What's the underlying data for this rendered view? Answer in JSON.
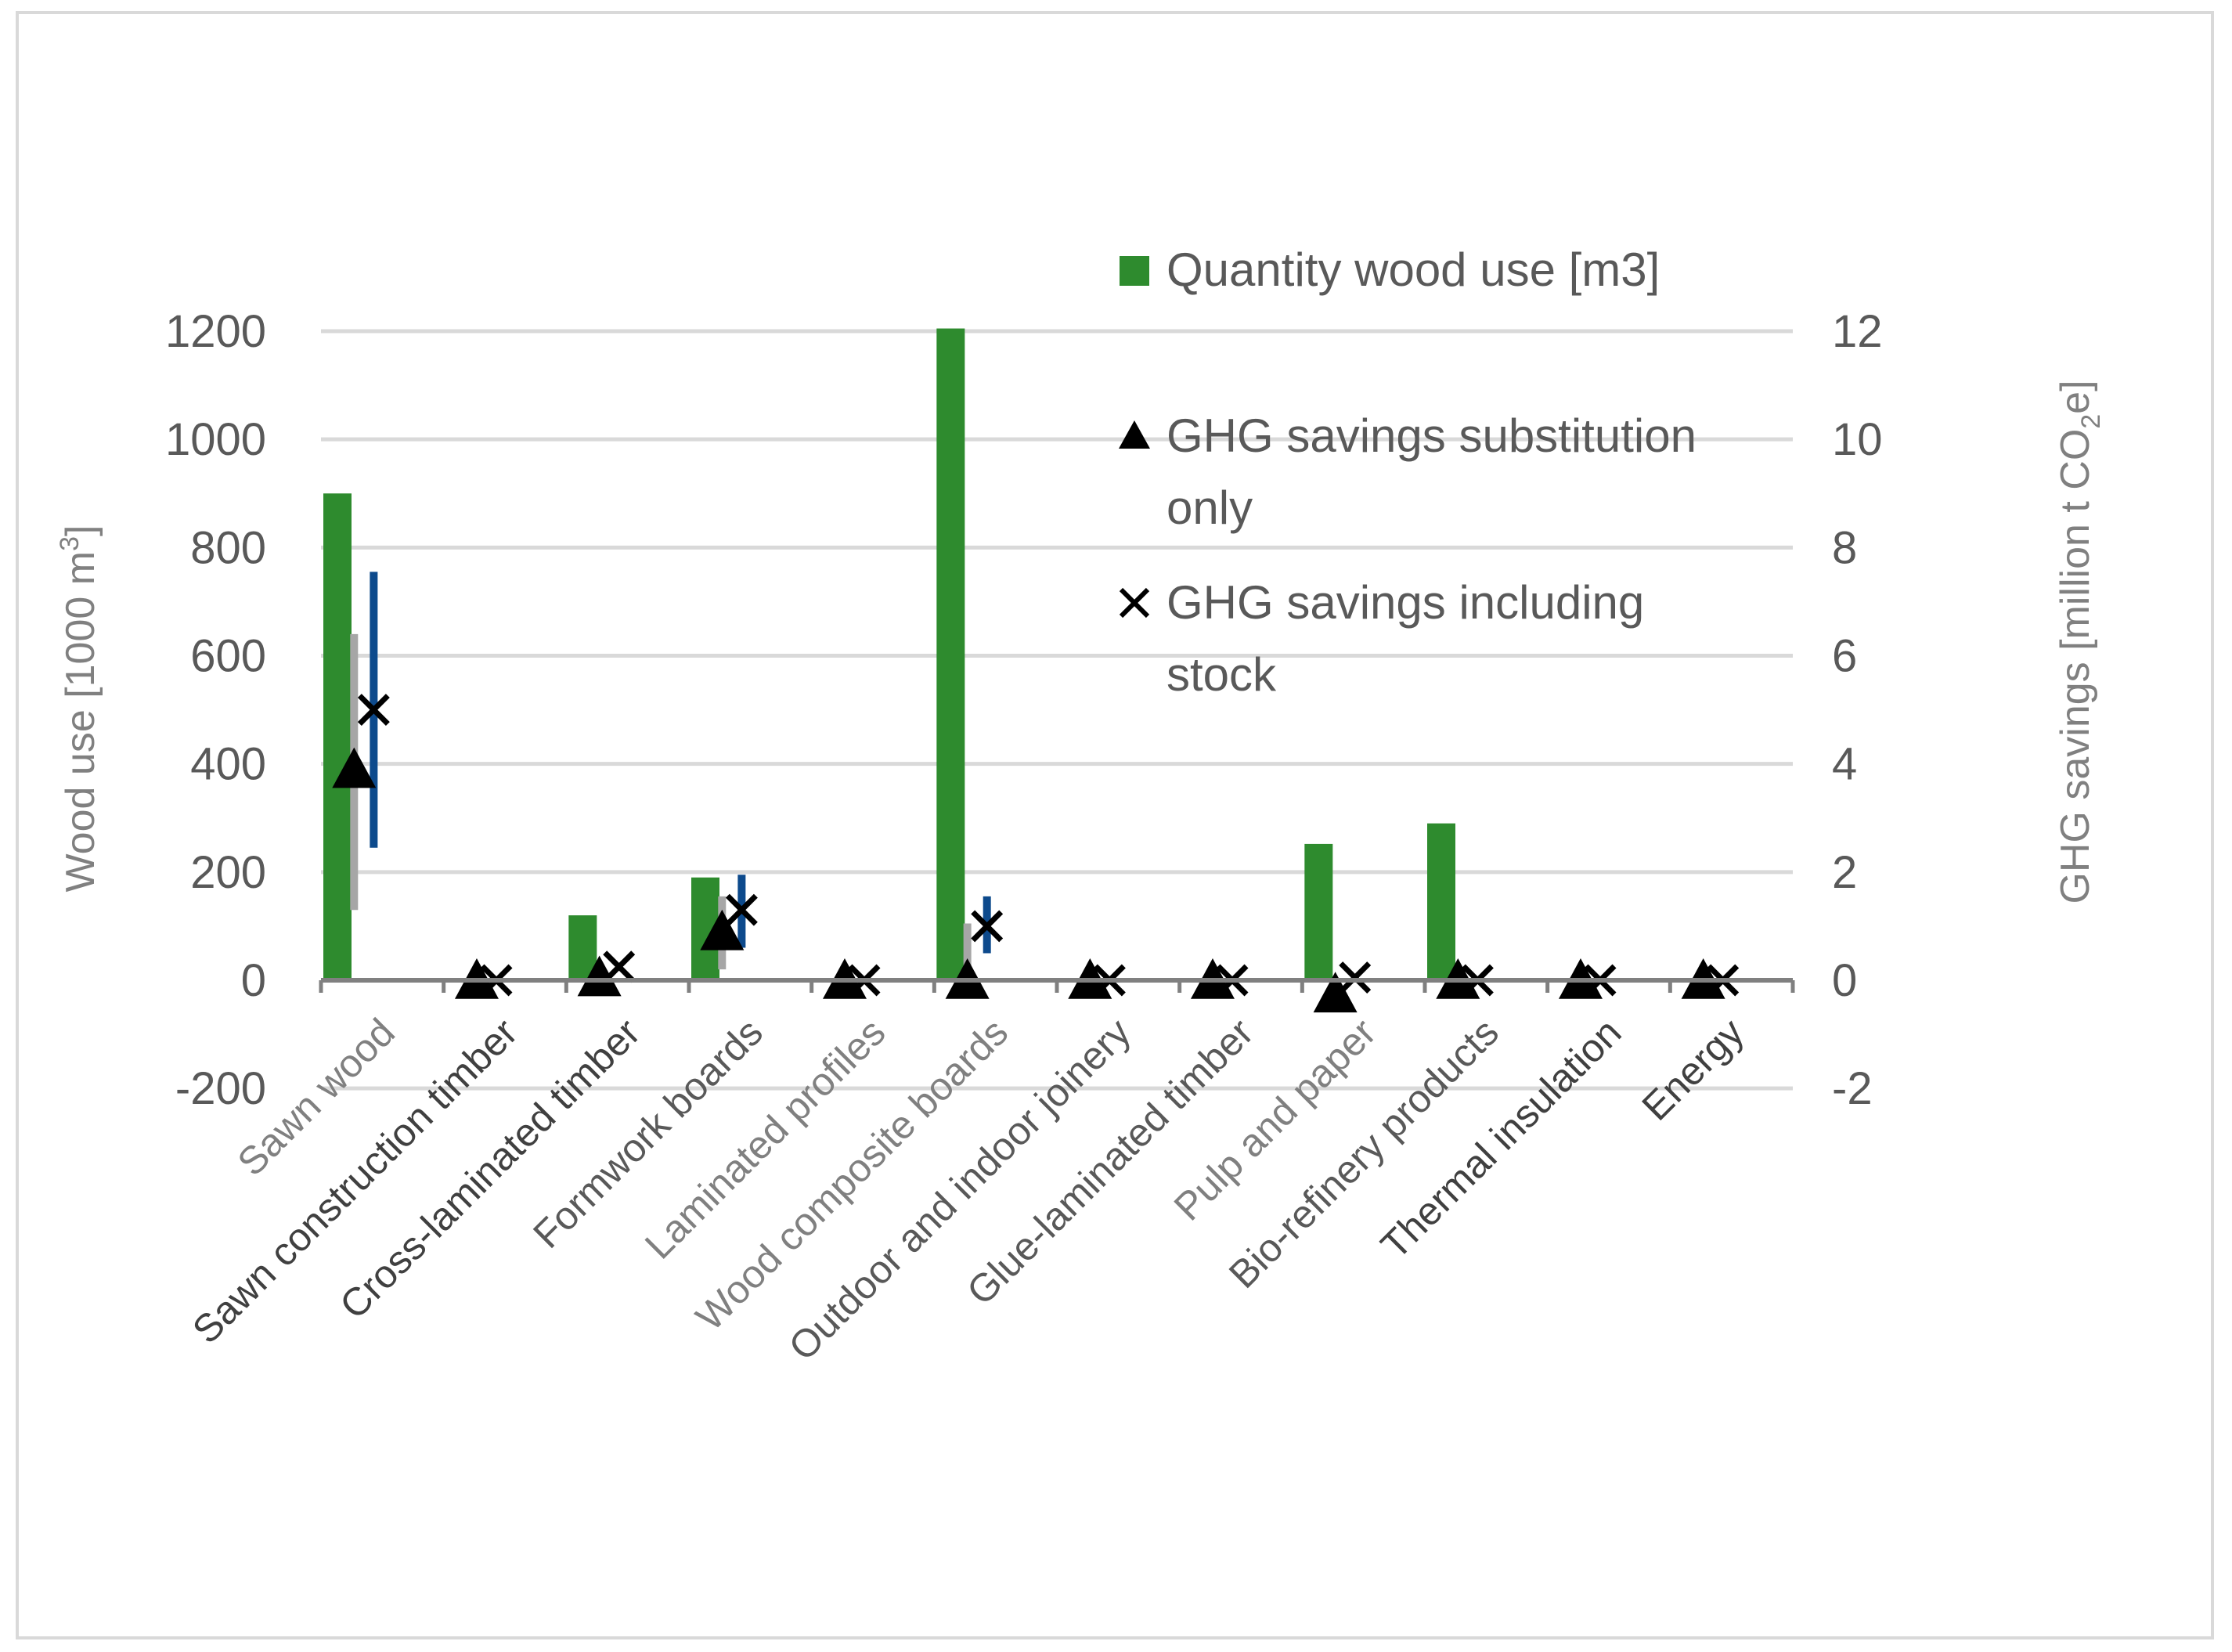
{
  "chart_data": {
    "type": "bar",
    "categories": [
      "Sawn wood",
      "Sawn construction timber",
      "Cross-laminated timber",
      "Formwork boards",
      "Laminated profiles",
      "Wood composite boards",
      "Outdoor and indoor joinery",
      "Glue-laminated timber",
      "Pulp and paper",
      "Bio-refinery products",
      "Thermal insulation",
      "Energy"
    ],
    "category_label_colors": [
      "#808080",
      "#404040",
      "#404040",
      "#595959",
      "#808080",
      "#808080",
      "#595959",
      "#595959",
      "#808080",
      "#595959",
      "#404040",
      "#404040"
    ],
    "series": [
      {
        "name": "Quantity wood use [m3]",
        "axis": "left",
        "type": "bar",
        "color": "#2e8b2e",
        "values": [
          900,
          0,
          120,
          190,
          0,
          1205,
          0,
          0,
          252,
          290,
          0,
          0
        ]
      },
      {
        "name": "GHG savings substitution only",
        "axis": "right",
        "type": "scatter",
        "marker": "triangle",
        "color": "#000000",
        "values": [
          3.9,
          0.0,
          0.05,
          0.9,
          0.0,
          0.0,
          0.0,
          0.0,
          -0.25,
          0.0,
          0.0,
          0.0
        ],
        "error_low": [
          1.3,
          null,
          null,
          0.2,
          null,
          null,
          null,
          null,
          null,
          null,
          null,
          null
        ],
        "error_high": [
          6.4,
          null,
          null,
          1.55,
          null,
          null,
          null,
          null,
          null,
          null,
          null,
          null
        ],
        "error_color": "#a6a6a6"
      },
      {
        "name": "GHG savings including stock",
        "axis": "right",
        "type": "scatter",
        "marker": "x",
        "color": "#000000",
        "values": [
          5.0,
          0.0,
          0.25,
          1.3,
          0.0,
          1.0,
          0.0,
          0.0,
          0.05,
          0.0,
          0.0,
          0.0
        ],
        "error_low": [
          2.45,
          null,
          null,
          0.6,
          null,
          0.5,
          null,
          null,
          null,
          null,
          null,
          null
        ],
        "error_high": [
          7.55,
          null,
          null,
          1.95,
          null,
          1.55,
          null,
          null,
          null,
          null,
          null,
          null
        ],
        "error_color": "#0d4a8c"
      }
    ],
    "extra_error_bars": [
      {
        "category_index": 5,
        "axis": "right",
        "low": 0.0,
        "high": 1.05,
        "color": "#a6a6a6"
      }
    ],
    "ylabel_left": "Wood use [1000 m",
    "ylabel_left_sup": "3",
    "ylabel_left_end": "]",
    "ylabel_right": "GHG savings [million t CO",
    "ylabel_right_sub": "2",
    "ylabel_right_end": "e]",
    "ylim_left": [
      -200,
      1200
    ],
    "ylim_right": [
      -2,
      12
    ],
    "yticks_left": [
      "-200",
      "0",
      "200",
      "400",
      "600",
      "800",
      "1000",
      "1200"
    ],
    "yticks_right": [
      "-2",
      "0",
      "2",
      "4",
      "6",
      "8",
      "10",
      "12"
    ],
    "grid": true,
    "legend": {
      "position": "top-right",
      "entries": [
        {
          "marker": "square",
          "lines": [
            "Quantity wood use [m3]"
          ]
        },
        {
          "marker": "triangle",
          "lines": [
            "GHG savings substitution",
            "only"
          ]
        },
        {
          "marker": "x",
          "lines": [
            "GHG savings including",
            "stock"
          ]
        }
      ]
    }
  }
}
